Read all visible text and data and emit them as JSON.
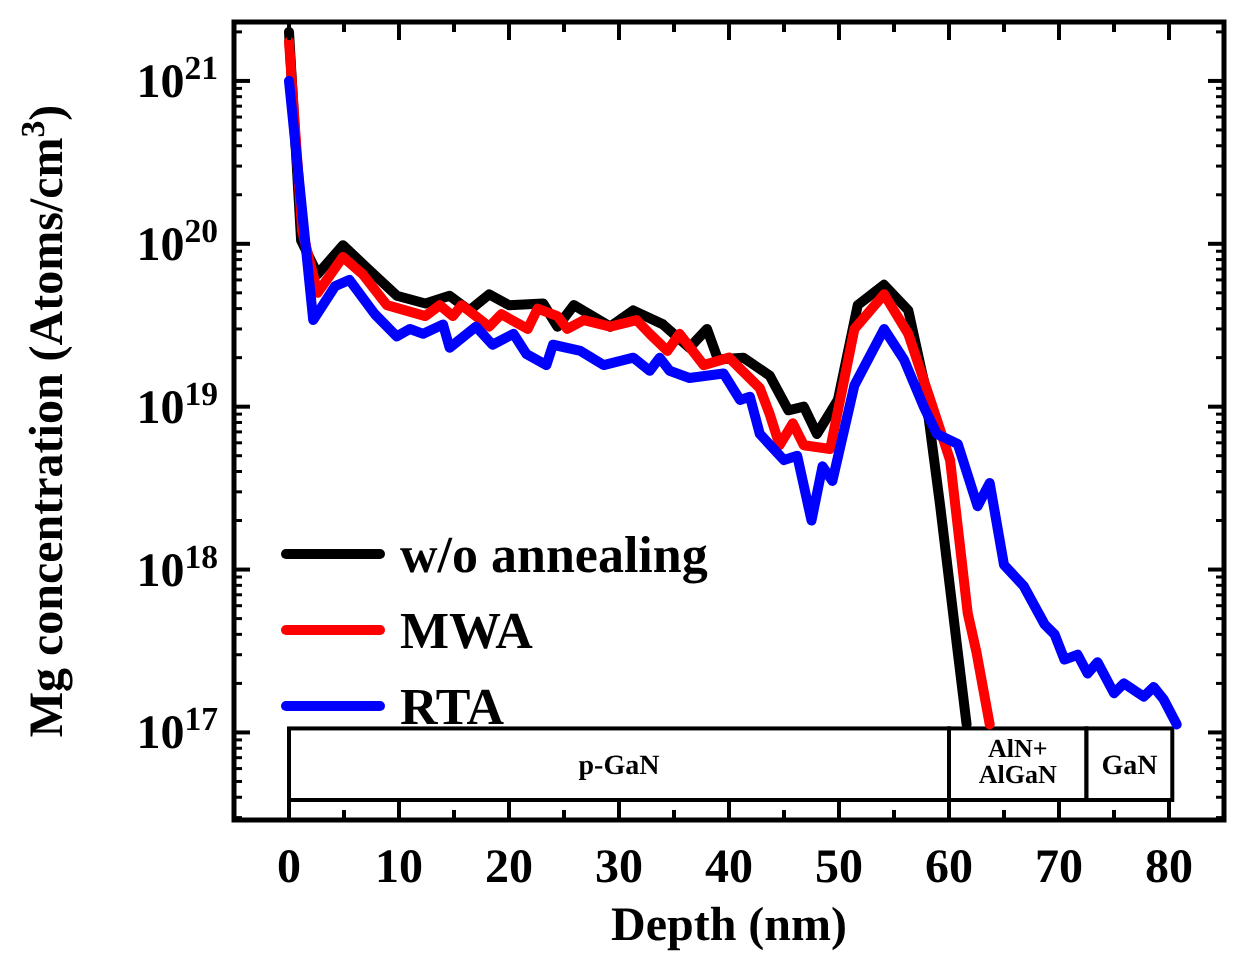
{
  "chart_data": {
    "type": "line",
    "xlabel": "Depth (nm)",
    "ylabel": "Mg concentration (Atoms/cm$^{3}$)",
    "log": "y",
    "xlim": [
      -5,
      85
    ],
    "ylim": [
      2.9e+16,
      2.3e+21
    ],
    "xticks": [
      0,
      {
        "value": 5,
        "label": null
      },
      10,
      {
        "value": 15,
        "label": null
      },
      20,
      {
        "value": 25,
        "label": null
      },
      30,
      {
        "value": 35,
        "label": null
      },
      40,
      {
        "value": 45,
        "label": null
      },
      50,
      {
        "value": 55,
        "label": null
      },
      60,
      {
        "value": 65,
        "label": null
      },
      70,
      {
        "value": 75,
        "label": null
      },
      80
    ],
    "yticks": [
      {
        "value": 1e+17,
        "label": "10$^{17}$"
      },
      {
        "value": 1e+18,
        "label": "10$^{18}$"
      },
      {
        "value": 1e+19,
        "label": "10$^{19}$"
      },
      {
        "value": 1e+20,
        "label": "10$^{20}$"
      },
      {
        "value": 1e+21,
        "label": "10$^{21}$"
      }
    ],
    "grid": false,
    "legend": "bottom left",
    "line_style": "solid",
    "bands": [
      {
        "axis": "x",
        "from": 0,
        "to": 60,
        "label": "p-GaN"
      },
      {
        "axis": "x",
        "from": 60,
        "to": 72.5,
        "label": "AlN+ AlGaN"
      },
      {
        "axis": "x",
        "from": 72.5,
        "to": 80.3,
        "label": "GaN"
      }
    ],
    "series": [
      {
        "name": "w/o annealing",
        "color": "#000000",
        "x": [
          0,
          1.1,
          2.6,
          4.9,
          7.3,
          9.8,
          12.4,
          14.6,
          16.4,
          18.2,
          20,
          23.1,
          24.4,
          25.9,
          29.2,
          31.3,
          34,
          36.4,
          38,
          39,
          41.3,
          43.7,
          45.4,
          46.8,
          48,
          49.9,
          51.7,
          54.1,
          56.3,
          57.7,
          59.2,
          60.8,
          61.6
        ],
        "values": [
          2e+21,
          1.05e+20,
          6.5e+19,
          9.8e+19,
          6.9e+19,
          4.8e+19,
          4.3e+19,
          4.8e+19,
          3.9e+19,
          4.9e+19,
          4.2e+19,
          4.3e+19,
          3.1e+19,
          4.2e+19,
          3.1e+19,
          3.9e+19,
          3.2e+19,
          2.3e+19,
          3e+19,
          1.95e+19,
          2e+19,
          1.55e+19,
          9.5e+18,
          1e+19,
          6.8e+18,
          1.1e+19,
          4.2e+19,
          5.6e+19,
          3.9e+19,
          1.45e+19,
          2.45e+18,
          3.1e+17,
          1.12e+17
        ]
      },
      {
        "name": "MWA",
        "color": "#ff0000",
        "x": [
          0,
          1.2,
          2.6,
          4.9,
          6.7,
          8.9,
          12.4,
          13.7,
          14.9,
          15.7,
          18.2,
          19.3,
          21.7,
          22.6,
          24.4,
          25.3,
          26.8,
          29.2,
          31.6,
          32.8,
          34.4,
          35.5,
          37.7,
          40,
          42.8,
          43.7,
          44.6,
          45.8,
          46.8,
          49.2,
          51.4,
          54.1,
          56.3,
          58.3,
          60.1,
          61.7,
          62.5,
          63.7
        ],
        "values": [
          1.74e+21,
          1.2e+20,
          5e+19,
          8.3e+19,
          6.5e+19,
          4.2e+19,
          3.6e+19,
          4.2e+19,
          3.6e+19,
          4.2e+19,
          3.1e+19,
          3.7e+19,
          3e+19,
          4e+19,
          3.6e+19,
          3e+19,
          3.4e+19,
          3.1e+19,
          3.4e+19,
          2.8e+19,
          2.2e+19,
          2.8e+19,
          1.8e+19,
          2e+19,
          1.3e+19,
          9e+18,
          5.8e+18,
          7.9e+18,
          5.8e+18,
          5.5e+18,
          3e+19,
          4.9e+19,
          2.8e+19,
          1.1e+19,
          4.7e+18,
          5.4e+17,
          3.1e+17,
          1.12e+17
        ]
      },
      {
        "name": "RTA",
        "color": "#0000ff",
        "x": [
          0,
          2.2,
          4.2,
          5.5,
          7.8,
          9.8,
          11,
          12.2,
          14,
          14.6,
          17,
          18.5,
          20.4,
          21.6,
          23.4,
          24,
          26.5,
          28.6,
          31.3,
          32.8,
          33.7,
          34.6,
          36.4,
          39.5,
          41,
          41.9,
          42.8,
          45,
          46.2,
          47.5,
          48.5,
          49.4,
          51.4,
          54.1,
          55.9,
          57.7,
          58.9,
          60.8,
          62.6,
          63.7,
          65,
          66.8,
          68.7,
          69.6,
          70.5,
          71.7,
          72.6,
          73.5,
          75,
          75.9,
          77.7,
          78.6,
          79.5,
          80.7
        ],
        "values": [
          1e+21,
          3.4e+19,
          5.5e+19,
          6e+19,
          3.7e+19,
          2.7e+19,
          3e+19,
          2.8e+19,
          3.2e+19,
          2.3e+19,
          3.1e+19,
          2.4e+19,
          2.8e+19,
          2.1e+19,
          1.8e+19,
          2.4e+19,
          2.2e+19,
          1.8e+19,
          2e+19,
          1.66e+19,
          2e+19,
          1.66e+19,
          1.5e+19,
          1.6e+19,
          1.1e+19,
          1.15e+19,
          6.8e+18,
          4.7e+18,
          5e+18,
          2e+18,
          4.3e+18,
          3.5e+18,
          1.35e+19,
          3e+19,
          1.95e+19,
          1e+19,
          6.8e+18,
          5.9e+18,
          2.45e+18,
          3.4e+18,
          1.07e+18,
          7.9e+17,
          4.6e+17,
          4e+17,
          2.8e+17,
          3e+17,
          2.3e+17,
          2.7e+17,
          1.74e+17,
          2e+17,
          1.66e+17,
          1.9e+17,
          1.6e+17,
          1.12e+17
        ]
      }
    ]
  }
}
